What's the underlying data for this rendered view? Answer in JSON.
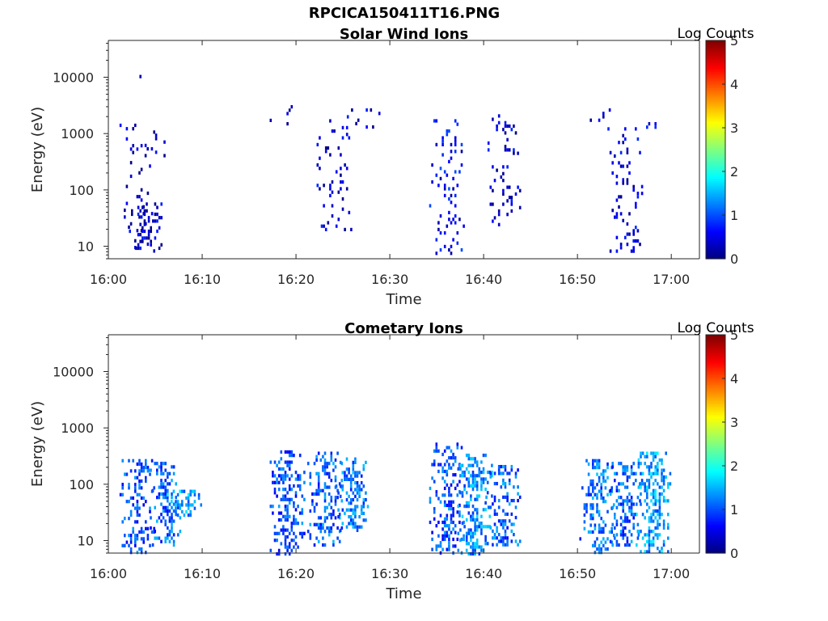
{
  "title": "RPCICA150411T16.PNG",
  "chart_data": [
    {
      "type": "heatmap",
      "title": "Solar Wind Ions",
      "xlabel": "Time",
      "ylabel": "Energy (eV)",
      "x_ticks": [
        "16:00",
        "16:10",
        "16:20",
        "16:30",
        "16:40",
        "16:50",
        "17:00"
      ],
      "x_range": [
        "16:00",
        "17:03"
      ],
      "y_scale": "log",
      "y_ticks": [
        10,
        100,
        1000,
        10000
      ],
      "y_tick_labels": [
        "10",
        "100",
        "1000",
        "10000"
      ],
      "ylim": [
        6,
        45000
      ],
      "colorbar": {
        "label": "Log Counts",
        "range": [
          0,
          5
        ],
        "ticks": [
          "0",
          "1",
          "2",
          "3",
          "4",
          "5"
        ],
        "colormap": "jet"
      },
      "clusters": [
        {
          "t": "16:03",
          "emin": 8,
          "emax": 1500,
          "level": 0.2,
          "density": 0.1
        },
        {
          "t": "16:04",
          "emin": 8,
          "emax": 60,
          "level": 0.3,
          "density": 0.35
        },
        {
          "t": "16:05",
          "emin": 400,
          "emax": 1000,
          "level": 0.2,
          "density": 0.1
        },
        {
          "t": "16:04",
          "emin": 9000,
          "emax": 11000,
          "level": 0.2,
          "density": 0.05
        },
        {
          "t": "16:19",
          "emin": 1300,
          "emax": 3200,
          "level": 0.2,
          "density": 0.1
        },
        {
          "t": "16:24",
          "emin": 20,
          "emax": 1800,
          "level": 0.3,
          "density": 0.18
        },
        {
          "t": "16:27",
          "emin": 1300,
          "emax": 2800,
          "level": 0.3,
          "density": 0.15
        },
        {
          "t": "16:36",
          "emin": 8,
          "emax": 1800,
          "level": 0.5,
          "density": 0.2
        },
        {
          "t": "16:42",
          "emin": 25,
          "emax": 2200,
          "level": 0.3,
          "density": 0.14
        },
        {
          "t": "16:52",
          "emin": 1300,
          "emax": 2800,
          "level": 0.2,
          "density": 0.1
        },
        {
          "t": "16:55",
          "emin": 8,
          "emax": 1300,
          "level": 0.3,
          "density": 0.18
        },
        {
          "t": "16:58",
          "emin": 1300,
          "emax": 1600,
          "level": 0.4,
          "density": 0.2
        }
      ]
    },
    {
      "type": "heatmap",
      "title": "Cometary Ions",
      "xlabel": "Time",
      "ylabel": "Energy (eV)",
      "x_ticks": [
        "16:00",
        "16:10",
        "16:20",
        "16:30",
        "16:40",
        "16:50",
        "17:00"
      ],
      "x_range": [
        "16:00",
        "17:03"
      ],
      "y_scale": "log",
      "y_ticks": [
        10,
        100,
        1000,
        10000
      ],
      "y_tick_labels": [
        "10",
        "100",
        "1000",
        "10000"
      ],
      "ylim": [
        6,
        45000
      ],
      "colorbar": {
        "label": "Log Counts",
        "range": [
          0,
          5
        ],
        "ticks": [
          "0",
          "1",
          "2",
          "3",
          "4",
          "5"
        ],
        "colormap": "jet"
      },
      "clusters": [
        {
          "t": "16:03",
          "emin": 6,
          "emax": 280,
          "level": 0.9,
          "density": 0.45
        },
        {
          "t": "16:06",
          "emin": 8,
          "emax": 250,
          "level": 1.0,
          "density": 0.5
        },
        {
          "t": "16:08",
          "emin": 30,
          "emax": 80,
          "level": 1.3,
          "density": 0.6
        },
        {
          "t": "16:19",
          "emin": 6,
          "emax": 400,
          "level": 0.9,
          "density": 0.5
        },
        {
          "t": "16:23",
          "emin": 8,
          "emax": 380,
          "level": 1.0,
          "density": 0.5
        },
        {
          "t": "16:26",
          "emin": 15,
          "emax": 300,
          "level": 1.1,
          "density": 0.5
        },
        {
          "t": "16:36",
          "emin": 6,
          "emax": 550,
          "level": 0.9,
          "density": 0.5
        },
        {
          "t": "16:39",
          "emin": 6,
          "emax": 350,
          "level": 1.2,
          "density": 0.55
        },
        {
          "t": "16:42",
          "emin": 8,
          "emax": 220,
          "level": 1.0,
          "density": 0.45
        },
        {
          "t": "16:52",
          "emin": 6,
          "emax": 280,
          "level": 1.1,
          "density": 0.5
        },
        {
          "t": "16:55",
          "emin": 8,
          "emax": 250,
          "level": 1.0,
          "density": 0.5
        },
        {
          "t": "16:58",
          "emin": 6,
          "emax": 380,
          "level": 1.3,
          "density": 0.55
        }
      ]
    }
  ]
}
